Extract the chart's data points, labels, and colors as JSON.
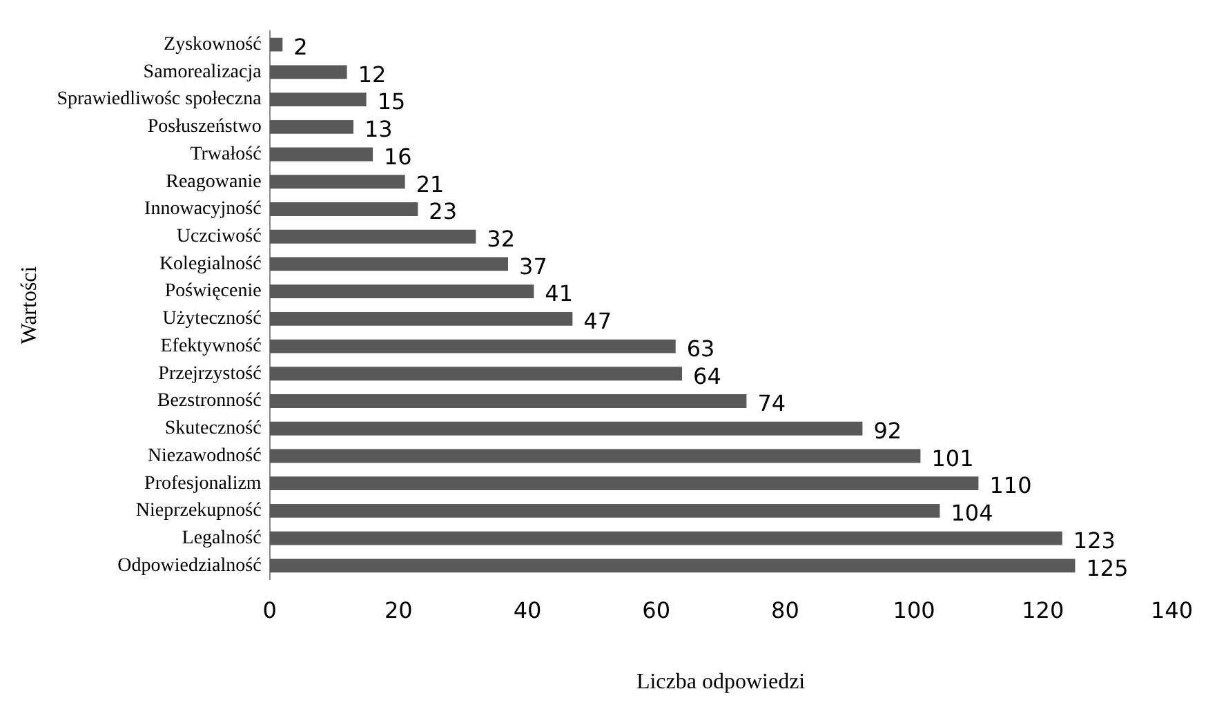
{
  "chart_data": {
    "type": "bar",
    "orientation": "horizontal",
    "xlabel": "Liczba odpowiedzi",
    "ylabel": "Wartości",
    "categories": [
      "Zyskowność",
      "Samorealizacja",
      "Sprawiedliwośc społeczna",
      "Posłuszeństwo",
      "Trwałość",
      "Reagowanie",
      "Innowacyjność",
      "Uczciwość",
      "Kolegialność",
      "Poświęcenie",
      "Użyteczność",
      "Efektywność",
      "Przejrzystość",
      "Bezstronność",
      "Skuteczność",
      "Niezawodność",
      "Profesjonalizm",
      "Nieprzekupność",
      "Legalność",
      "Odpowiedzialność"
    ],
    "values": [
      2,
      12,
      15,
      13,
      16,
      21,
      23,
      32,
      37,
      41,
      47,
      63,
      64,
      74,
      92,
      101,
      110,
      104,
      123,
      125
    ],
    "color": "#595959",
    "xlim": [
      0,
      140
    ],
    "xticks": [
      0,
      20,
      40,
      60,
      80,
      100,
      120,
      140
    ],
    "data_labels": true,
    "grid": false,
    "legend": false
  }
}
